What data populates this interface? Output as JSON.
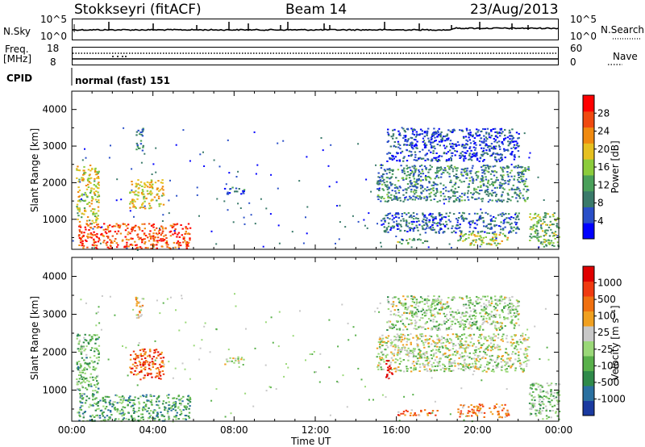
{
  "header": {
    "station": "Stokkseyri (fitACF)",
    "beam": "Beam 14",
    "date": "23/Aug/2013"
  },
  "top_panels": {
    "nsky_label": "N.Sky",
    "nsky_ticks": [
      "10^5",
      "10^0"
    ],
    "nsearch_label": "N.Search",
    "nsearch_ticks": [
      "10^5",
      "10^0"
    ],
    "freq_label": "Freq.",
    "freq_unit": "[MHz]",
    "freq_ticks": [
      "18",
      "8"
    ],
    "nave_label": "Nave",
    "nave_ticks": [
      "60",
      "0"
    ],
    "cpid_label": "CPID",
    "cpid_value": "normal (fast) 151"
  },
  "chart_data": [
    {
      "type": "heatmap",
      "panel": "power",
      "xlabel": "",
      "ylabel": "Slant Range [km]",
      "x_ticks": [
        "00:00",
        "04:00",
        "08:00",
        "12:00",
        "16:00",
        "20:00",
        "00:00"
      ],
      "xlim_hours": [
        0,
        24
      ],
      "ylim": [
        180,
        4500
      ],
      "y_ticks": [
        1000,
        2000,
        3000,
        4000
      ],
      "colorbar": {
        "label": "Power [dB]",
        "ticks": [
          "28",
          "24",
          "20",
          "16",
          "12",
          "8",
          "4"
        ],
        "colors": [
          "#0000ff",
          "#2a4fc8",
          "#3a7a6a",
          "#4aa05a",
          "#8ccc3c",
          "#e6c020",
          "#f08a10",
          "#f04a10",
          "#ff0000"
        ]
      },
      "blobs": [
        {
          "t0": 0.3,
          "t1": 5.8,
          "r0": 200,
          "r1": 900,
          "level": 0.85
        },
        {
          "t0": 0.2,
          "t1": 1.3,
          "r0": 900,
          "r1": 2500,
          "level": 0.55
        },
        {
          "t0": 2.8,
          "t1": 4.5,
          "r0": 1300,
          "r1": 2100,
          "level": 0.6
        },
        {
          "t0": 3.1,
          "t1": 3.5,
          "r0": 2900,
          "r1": 3500,
          "level": 0.3
        },
        {
          "t0": 7.5,
          "t1": 8.5,
          "r0": 1700,
          "r1": 1900,
          "level": 0.2
        },
        {
          "t0": 15.0,
          "t1": 22.5,
          "r0": 1500,
          "r1": 2500,
          "level": 0.3
        },
        {
          "t0": 16.0,
          "t1": 17.5,
          "r0": 350,
          "r1": 500,
          "level": 0.4
        },
        {
          "t0": 19.0,
          "t1": 21.5,
          "r0": 300,
          "r1": 650,
          "level": 0.55
        },
        {
          "t0": 22.5,
          "t1": 24.0,
          "r0": 250,
          "r1": 1200,
          "level": 0.45
        },
        {
          "t0": 15.2,
          "t1": 22.0,
          "r0": 650,
          "r1": 1200,
          "level": 0.2
        },
        {
          "t0": 15.5,
          "t1": 22.0,
          "r0": 2600,
          "r1": 3500,
          "level": 0.15
        }
      ]
    },
    {
      "type": "heatmap",
      "panel": "velocity",
      "xlabel": "Time UT",
      "ylabel": "Slant Range [km]",
      "x_ticks": [
        "00:00",
        "04:00",
        "08:00",
        "12:00",
        "16:00",
        "20:00",
        "00:00"
      ],
      "xlim_hours": [
        0,
        24
      ],
      "ylim": [
        180,
        4500
      ],
      "y_ticks": [
        1000,
        2000,
        3000,
        4000
      ],
      "colorbar": {
        "label": "Velocity  [m s⁻¹]",
        "ticks": [
          "1000",
          "500",
          "100",
          "25",
          "-25",
          "-100",
          "-500",
          "-1000"
        ],
        "colors": [
          "#1a3aa0",
          "#2a70a0",
          "#2f8a4a",
          "#58b04a",
          "#9ad878",
          "#c8c8c8",
          "#f0a020",
          "#f07010",
          "#f03a10",
          "#e00000"
        ]
      },
      "blobs": [
        {
          "t0": 0.3,
          "t1": 5.8,
          "r0": 200,
          "r1": 900,
          "level": 0.3
        },
        {
          "t0": 0.2,
          "t1": 1.3,
          "r0": 900,
          "r1": 2500,
          "level": 0.35
        },
        {
          "t0": 2.8,
          "t1": 4.5,
          "r0": 1300,
          "r1": 2100,
          "level": 0.8
        },
        {
          "t0": 3.1,
          "t1": 3.5,
          "r0": 2900,
          "r1": 3500,
          "level": 0.6
        },
        {
          "t0": 7.5,
          "t1": 8.5,
          "r0": 1700,
          "r1": 1900,
          "level": 0.5
        },
        {
          "t0": 15.0,
          "t1": 22.5,
          "r0": 1500,
          "r1": 2500,
          "level": 0.5
        },
        {
          "t0": 15.4,
          "t1": 15.8,
          "r0": 1300,
          "r1": 1800,
          "level": 0.95
        },
        {
          "t0": 16.0,
          "t1": 18.0,
          "r0": 350,
          "r1": 500,
          "level": 0.75
        },
        {
          "t0": 19.0,
          "t1": 21.5,
          "r0": 300,
          "r1": 650,
          "level": 0.72
        },
        {
          "t0": 22.5,
          "t1": 24.0,
          "r0": 250,
          "r1": 1200,
          "level": 0.4
        },
        {
          "t0": 15.5,
          "t1": 22.0,
          "r0": 2600,
          "r1": 3500,
          "level": 0.45
        }
      ]
    }
  ]
}
